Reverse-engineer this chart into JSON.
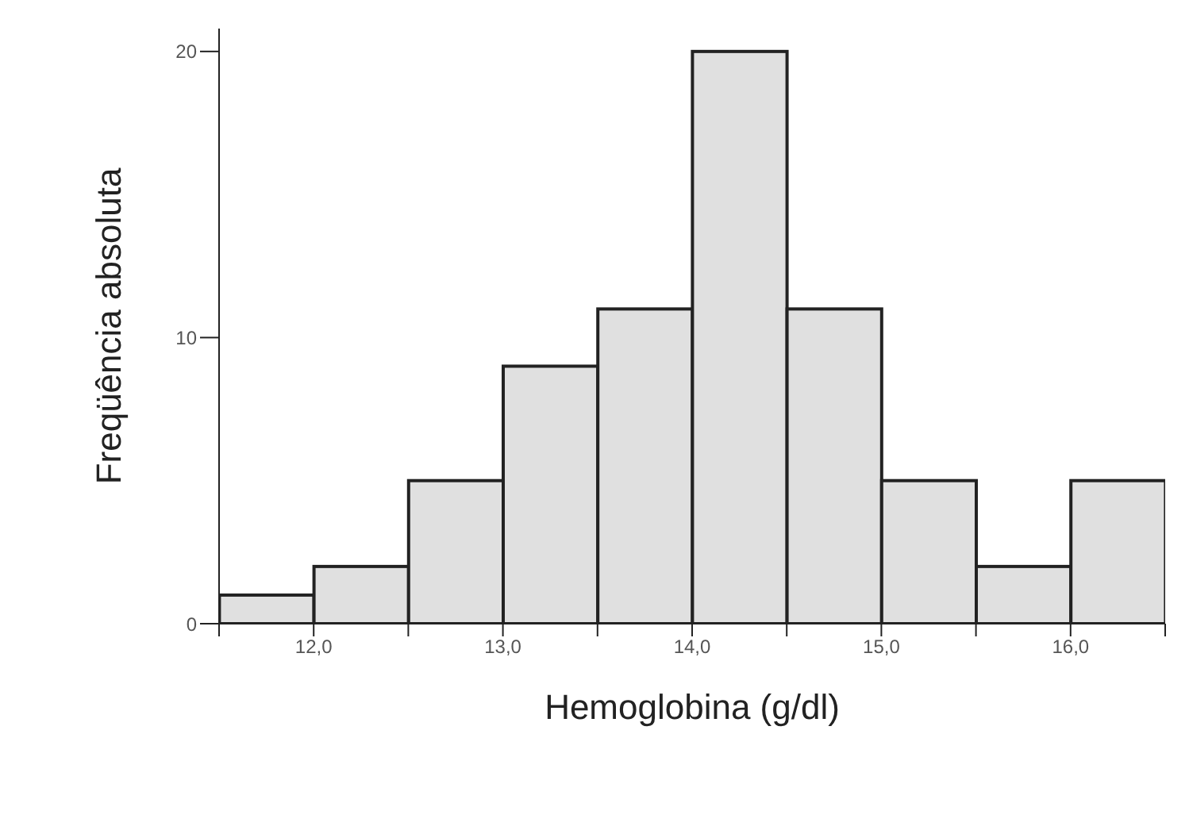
{
  "chart_data": {
    "type": "histogram",
    "xlabel": "Hemoglobina (g/dl)",
    "ylabel": "Freqüência absoluta",
    "bins": [
      11.5,
      12,
      12.5,
      13,
      13.5,
      14,
      14.5,
      15,
      15.5,
      16,
      16.5
    ],
    "values": [
      1,
      2,
      5,
      9,
      11,
      20,
      11,
      5,
      2,
      5
    ],
    "color": "#e0e0e0",
    "xlim": [
      11.5,
      16.5
    ],
    "xticks": [
      {
        "value": 11.5,
        "label": null
      },
      {
        "value": 12,
        "label": "12,0"
      },
      {
        "value": 12.5,
        "label": null
      },
      {
        "value": 13,
        "label": "13,0"
      },
      {
        "value": 13.5,
        "label": null
      },
      {
        "value": 14,
        "label": "14,0"
      },
      {
        "value": 14.5,
        "label": null
      },
      {
        "value": 15,
        "label": "15,0"
      },
      {
        "value": 15.5,
        "label": null
      },
      {
        "value": 16,
        "label": "16,0"
      },
      {
        "value": 16.5,
        "label": null
      }
    ],
    "ylim": [
      0,
      20.8
    ],
    "yticks": [
      0,
      10,
      20
    ],
    "grid": false
  }
}
